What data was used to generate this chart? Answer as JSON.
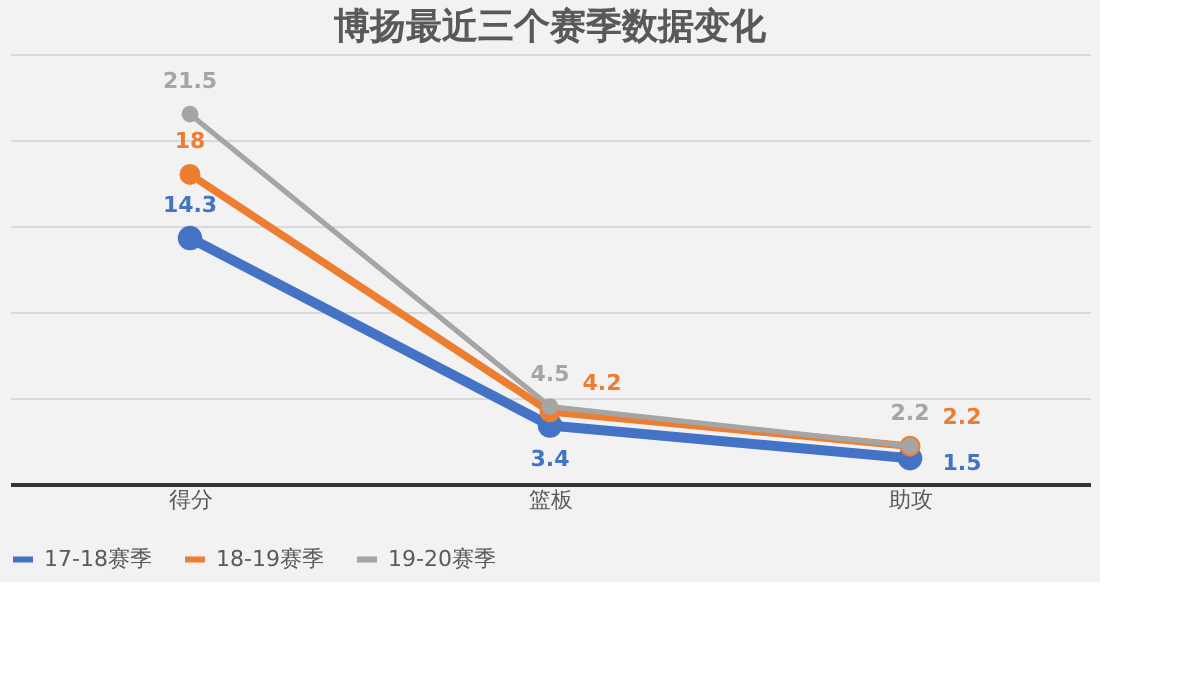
{
  "chart_data": {
    "type": "line",
    "title": "博扬最近三个赛季数据变化",
    "categories": [
      "得分",
      "篮板",
      "助攻"
    ],
    "series": [
      {
        "name": "17-18赛季",
        "color": "#4472c4",
        "values": [
          14.3,
          3.4,
          1.5
        ]
      },
      {
        "name": "18-19赛季",
        "color": "#ed7d31",
        "values": [
          18,
          4.2,
          2.2
        ]
      },
      {
        "name": "19-20赛季",
        "color": "#a5a5a5",
        "values": [
          21.5,
          4.5,
          2.2
        ]
      }
    ],
    "ylim": [
      0,
      25
    ],
    "yticks": [
      {
        "value": 0,
        "label": null
      },
      {
        "value": 5,
        "label": null
      },
      {
        "value": 10,
        "label": null
      },
      {
        "value": 15,
        "label": null
      },
      {
        "value": 20,
        "label": null
      },
      {
        "value": 25,
        "label": null
      }
    ],
    "grid": "y",
    "tick_labels": "x",
    "legend": "bottom",
    "marker": "circle",
    "data_labels": true,
    "line_style": "solid"
  }
}
